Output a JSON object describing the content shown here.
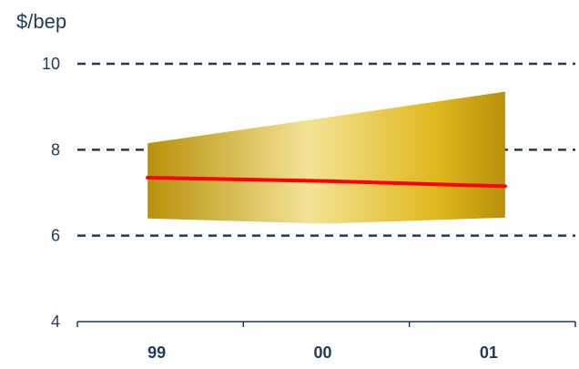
{
  "chart_data": {
    "type": "area",
    "ylabel": "$/bep",
    "categories": [
      "99",
      "00",
      "01"
    ],
    "ylim": [
      4,
      10
    ],
    "yticks": [
      4,
      6,
      8,
      10
    ],
    "gridlines": [
      6,
      8,
      10
    ],
    "grid": "dashed horizontal",
    "series": [
      {
        "values": [
          7.35,
          7.27,
          7.15
        ],
        "color": "#ff0000"
      }
    ],
    "band": {
      "upper": [
        8.15,
        8.75,
        9.35
      ],
      "lower": [
        6.4,
        6.28,
        6.42
      ],
      "colors": [
        "#b8900a",
        "#f3e396",
        "#e0b820",
        "#b8900a"
      ]
    },
    "colors": {
      "axis": "#1f3a5a",
      "grid": "#1f3a5a",
      "text": "#1f3a5a"
    }
  }
}
